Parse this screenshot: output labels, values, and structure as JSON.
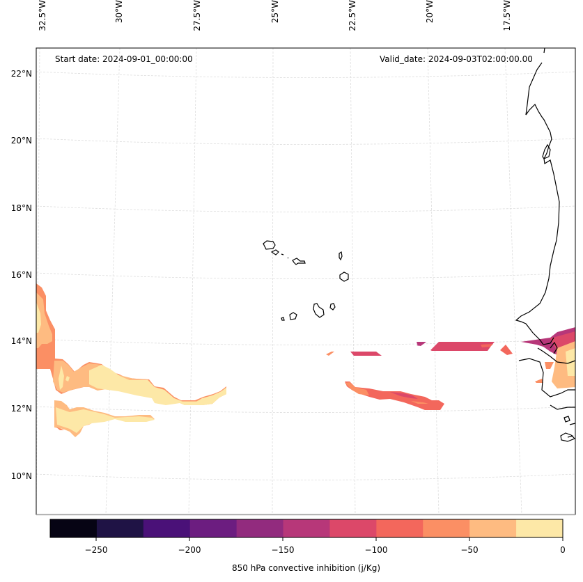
{
  "map": {
    "projection_note": "Lambert-style projection, West Africa / Cape Verde region",
    "start_date_label": "Start date: 2024-09-01_00:00:00",
    "valid_date_label": "Valid_date: 2024-09-03T02:00:00.00",
    "longitude_ticks": [
      "32.5°W",
      "30°W",
      "27.5°W",
      "25°W",
      "22.5°W",
      "20°W",
      "17.5°W"
    ],
    "latitude_ticks": [
      "22°N",
      "20°N",
      "18°N",
      "16°N",
      "14°N",
      "12°N",
      "10°N"
    ],
    "gridlines": true,
    "features": [
      "coastline",
      "Cape Verde islands",
      "West African coast (Mauritania, Senegal, Gambia, Guinea-Bissau)"
    ]
  },
  "colorbar": {
    "label": "850 hPa convective inhibition (j/Kg)",
    "tick_labels": [
      "−250",
      "−200",
      "−150",
      "−100",
      "−50",
      "0"
    ],
    "levels": [
      -275,
      -250,
      -225,
      -200,
      -175,
      -150,
      -125,
      -100,
      -75,
      -50,
      -25,
      0
    ],
    "colors": [
      "#060414",
      "#1f1345",
      "#4a1178",
      "#6c1d80",
      "#922b7e",
      "#b73779",
      "#dc4869",
      "#f3675c",
      "#fb8f64",
      "#febb81",
      "#fde8a7"
    ],
    "colormap": "magma"
  },
  "chart_data": {
    "type": "heatmap",
    "title": "",
    "variable": "850 hPa convective inhibition",
    "units": "j/Kg",
    "value_range": [
      -275,
      0
    ],
    "x_ticks": [
      "32.5°W",
      "30°W",
      "27.5°W",
      "25°W",
      "22.5°W",
      "20°W",
      "17.5°W"
    ],
    "y_ticks": [
      "22°N",
      "20°N",
      "18°N",
      "16°N",
      "14°N",
      "12°N",
      "10°N"
    ],
    "regions": [
      {
        "name": "western-band-north",
        "approx_lat": "12.5-15.5°N",
        "approx_lon": "32.5-27°W",
        "value_bins": [
          "-75 to -50",
          "-50 to -25",
          "-25 to 0"
        ]
      },
      {
        "name": "western-band-south",
        "approx_lat": "11.5-12.3°N",
        "approx_lon": "32-29°W",
        "value_bins": [
          "-50 to -25",
          "-25 to 0"
        ]
      },
      {
        "name": "central-band",
        "approx_lat": "12-12.8°N",
        "approx_lon": "23-20.5°W",
        "value_bins": [
          "-125 to -100",
          "-100 to -75",
          "-75 to -50"
        ]
      },
      {
        "name": "northern-streaks",
        "approx_lat": "13.7-14°N",
        "approx_lon": "24-17.5°W",
        "value_bins": [
          "-150 to -125",
          "-125 to -100",
          "-100 to -75"
        ]
      },
      {
        "name": "senegal-coast",
        "approx_lat": "12.3-14°N",
        "approx_lon": "17.5-16.5°W",
        "value_bins": [
          "-150 to -125",
          "-125 to -100",
          "-75 to -50",
          "-50 to -25"
        ]
      }
    ]
  }
}
